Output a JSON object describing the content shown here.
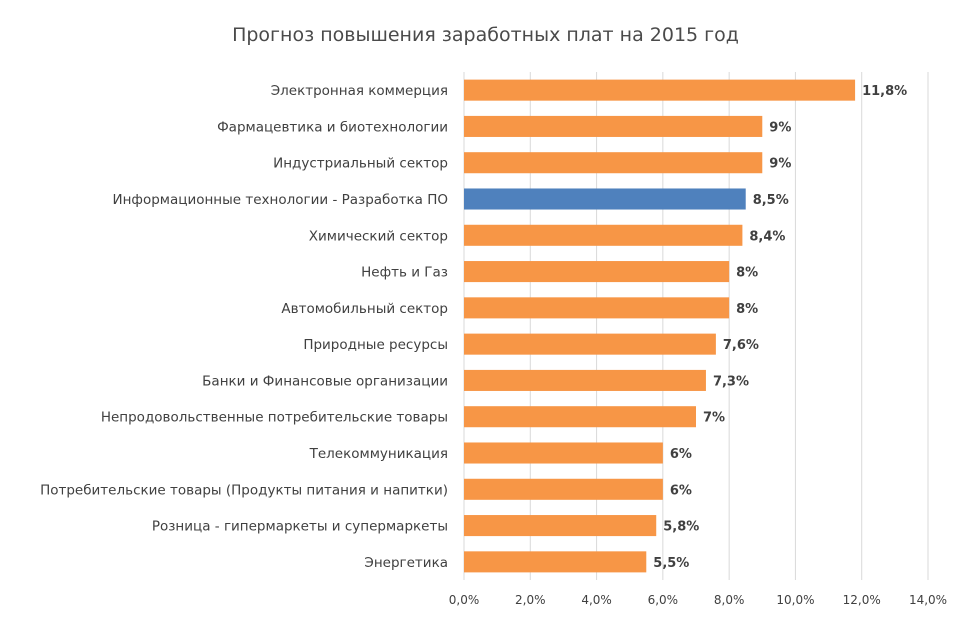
{
  "chart_data": {
    "type": "bar",
    "orientation": "horizontal",
    "title": "Прогноз повышения заработных плат на 2015 год",
    "xlabel": "",
    "ylabel": "",
    "xlim": [
      0,
      14
    ],
    "grid": true,
    "categories": [
      "Электронная коммерция",
      "Фармацевтика и биотехнологии",
      "Индустриальный сектор",
      "Информационные технологии - Разработка ПО",
      "Химический сектор",
      "Нефть и Газ",
      "Автомобильный сектор",
      "Природные ресурсы",
      "Банки и Финансовые организации",
      "Непродовольственные потребительские товары",
      "Телекоммуникация",
      "Потребительские товары (Продукты питания и напитки)",
      "Розница - гипермаркеты и супермаркеты",
      "Энергетика"
    ],
    "values": [
      11.8,
      9,
      9,
      8.5,
      8.4,
      8,
      8,
      7.6,
      7.3,
      7,
      6,
      6,
      5.8,
      5.5
    ],
    "value_labels": [
      "11,8%",
      "9%",
      "9%",
      "8,5%",
      "8,4%",
      "8%",
      "8%",
      "7,6%",
      "7,3%",
      "7%",
      "6%",
      "6%",
      "5,8%",
      "5,5%"
    ],
    "x_ticks": [
      0,
      2,
      4,
      6,
      8,
      10,
      12,
      14
    ],
    "x_tick_labels": [
      "0,0%",
      "2,0%",
      "4,0%",
      "6,0%",
      "8,0%",
      "10,0%",
      "12,0%",
      "14,0%"
    ],
    "highlight_index": 3,
    "colors": {
      "bar": "#F79646",
      "highlight": "#4F81BD",
      "grid": "#d9d9d9",
      "text": "#404040"
    }
  }
}
